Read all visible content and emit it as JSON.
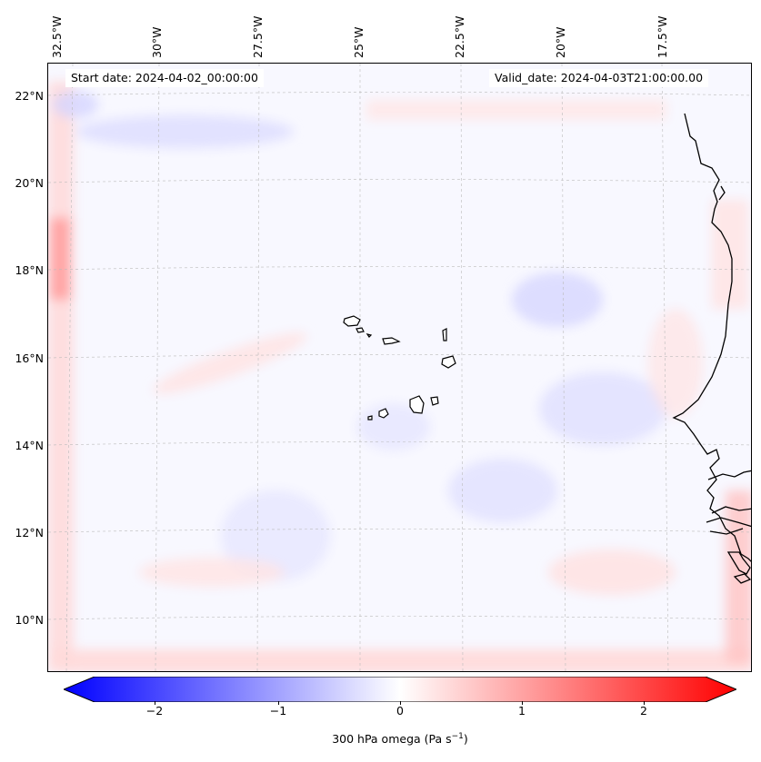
{
  "map": {
    "start_date": "Start date: 2024-04-02_00:00:00",
    "valid_date": "Valid_date: 2024-04-03T21:00:00.00",
    "lon_labels": [
      "32.5°W",
      "30°W",
      "27.5°W",
      "25°W",
      "22.5°W",
      "20°W",
      "17.5°W"
    ],
    "lat_labels": [
      "22°N",
      "20°N",
      "18°N",
      "16°N",
      "14°N",
      "12°N",
      "10°N"
    ],
    "coastline_color": "#000000",
    "gridline_color": "#bbbbbb"
  },
  "colorbar": {
    "ticks": [
      "−2",
      "−1",
      "0",
      "1",
      "2"
    ],
    "tick_values": [
      -2,
      -1,
      0,
      1,
      2
    ],
    "range": [
      -2.6,
      2.6
    ],
    "label": "300 hPa omega (Pa s",
    "label_sup": "−1",
    "label_end": ")",
    "color_low": "#0000ff",
    "color_mid": "#ffffff",
    "color_high": "#ff0000"
  }
}
